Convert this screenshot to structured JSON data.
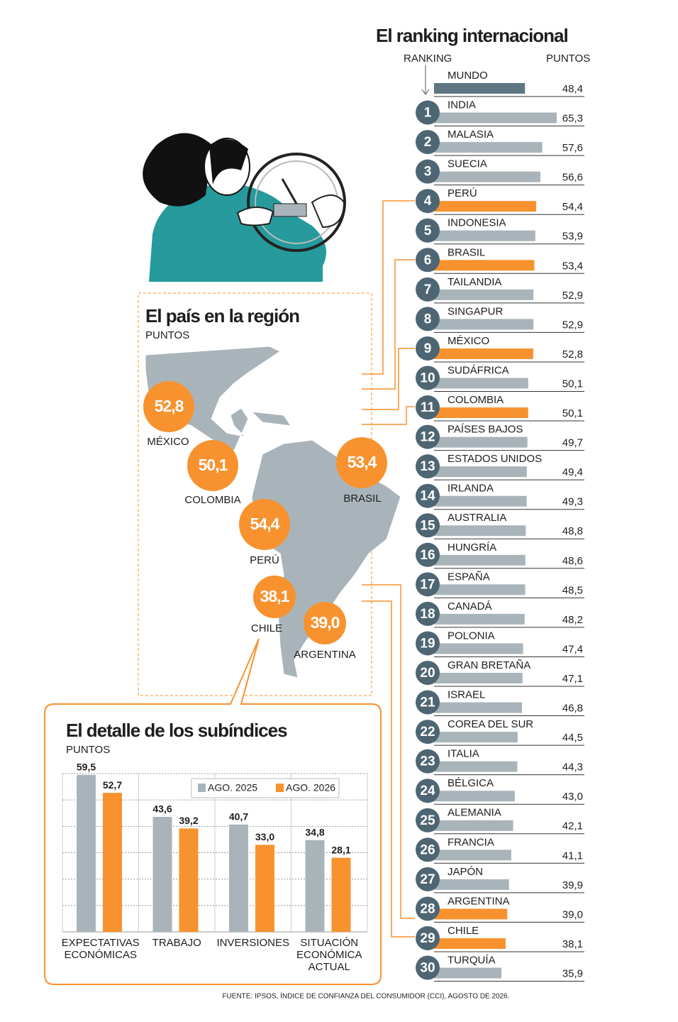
{
  "chart_data": [
    {
      "type": "bar",
      "orientation": "horizontal",
      "title": "El ranking internacional",
      "rank_label": "RANKING",
      "value_label": "PUNTOS",
      "categories": [
        "MUNDO",
        "INDIA",
        "MALASIA",
        "SUECIA",
        "PERÚ",
        "INDONESIA",
        "BRASIL",
        "TAILANDIA",
        "SINGAPUR",
        "MÉXICO",
        "SUDÁFRICA",
        "COLOMBIA",
        "PAÍSES BAJOS",
        "ESTADOS UNIDOS",
        "IRLANDA",
        "AUSTRALIA",
        "HUNGRÍA",
        "ESPAÑA",
        "CANADÁ",
        "POLONIA",
        "GRAN BRETAÑA",
        "ISRAEL",
        "COREA DEL SUR",
        "ITALIA",
        "BÉLGICA",
        "ALEMANIA",
        "FRANCIA",
        "JAPÓN",
        "ARGENTINA",
        "CHILE",
        "TURQUÍA"
      ],
      "ranks": [
        null,
        1,
        2,
        3,
        4,
        5,
        6,
        7,
        8,
        9,
        10,
        11,
        12,
        13,
        14,
        15,
        16,
        17,
        18,
        19,
        20,
        21,
        22,
        23,
        24,
        25,
        26,
        27,
        28,
        29,
        30
      ],
      "values": [
        48.4,
        65.3,
        57.6,
        56.6,
        54.4,
        53.9,
        53.4,
        52.9,
        52.9,
        52.8,
        50.1,
        50.1,
        49.7,
        49.4,
        49.3,
        48.8,
        48.6,
        48.5,
        48.2,
        47.4,
        47.1,
        46.8,
        44.5,
        44.3,
        43.0,
        42.1,
        41.1,
        39.9,
        39.0,
        38.1,
        35.9
      ],
      "value_labels": [
        "48,4",
        "65,3",
        "57,6",
        "56,6",
        "54,4",
        "53,9",
        "53,4",
        "52,9",
        "52,9",
        "52,8",
        "50,1",
        "50,1",
        "49,7",
        "49,4",
        "49,3",
        "48,8",
        "48,6",
        "48,5",
        "48,2",
        "47,4",
        "47,1",
        "46,8",
        "44,5",
        "44,3",
        "43,0",
        "42,1",
        "41,1",
        "39,9",
        "39,0",
        "38,1",
        "35,9"
      ],
      "colors": [
        "#5f7682",
        "#a9b4ba",
        "#a9b4ba",
        "#a9b4ba",
        "#f7922f",
        "#a9b4ba",
        "#f7922f",
        "#a9b4ba",
        "#a9b4ba",
        "#f7922f",
        "#a9b4ba",
        "#f7922f",
        "#a9b4ba",
        "#a9b4ba",
        "#a9b4ba",
        "#a9b4ba",
        "#a9b4ba",
        "#a9b4ba",
        "#a9b4ba",
        "#a9b4ba",
        "#a9b4ba",
        "#a9b4ba",
        "#a9b4ba",
        "#a9b4ba",
        "#a9b4ba",
        "#a9b4ba",
        "#a9b4ba",
        "#a9b4ba",
        "#f7922f",
        "#f7922f",
        "#a9b4ba"
      ],
      "rank_color": "#4e6673"
    },
    {
      "type": "bubble",
      "title": "El país en la región",
      "subtitle": "PUNTOS",
      "categories": [
        "MÉXICO",
        "COLOMBIA",
        "PERÚ",
        "BRASIL",
        "CHILE",
        "ARGENTINA"
      ],
      "values": [
        52.8,
        50.1,
        54.4,
        53.4,
        38.1,
        39.0
      ],
      "value_labels": [
        "52,8",
        "50,1",
        "54,4",
        "53,4",
        "38,1",
        "39,0"
      ],
      "color": "#f7922f"
    },
    {
      "type": "bar",
      "orientation": "vertical",
      "title": "El detalle de los subíndices",
      "subtitle": "PUNTOS",
      "categories": [
        "EXPECTATIVAS\nECONÓMICAS",
        "TRABAJO",
        "INVERSIONES",
        "SITUACIÓN\nECONÓMICA\nACTUAL"
      ],
      "series": [
        {
          "name": "AGO. 2025",
          "color": "#a9b4ba",
          "values": [
            59.5,
            43.6,
            40.7,
            34.8
          ],
          "value_labels": [
            "59,5",
            "43,6",
            "40,7",
            "34,8"
          ]
        },
        {
          "name": "AGO. 2026",
          "color": "#f7922f",
          "values": [
            52.7,
            39.2,
            33.0,
            28.1
          ],
          "value_labels": [
            "52,7",
            "39,2",
            "33,0",
            "28,1"
          ]
        }
      ],
      "ylim": [
        0,
        60
      ],
      "yticks": [
        0,
        10,
        20,
        30,
        40,
        50,
        60
      ],
      "grid": true,
      "legend": "top-right"
    }
  ],
  "source": "FUENTE: IPSOS, ÍNDICE DE CONFIANZA DEL CONSUMIDOR (CCI), AGOSTO DE 2026."
}
